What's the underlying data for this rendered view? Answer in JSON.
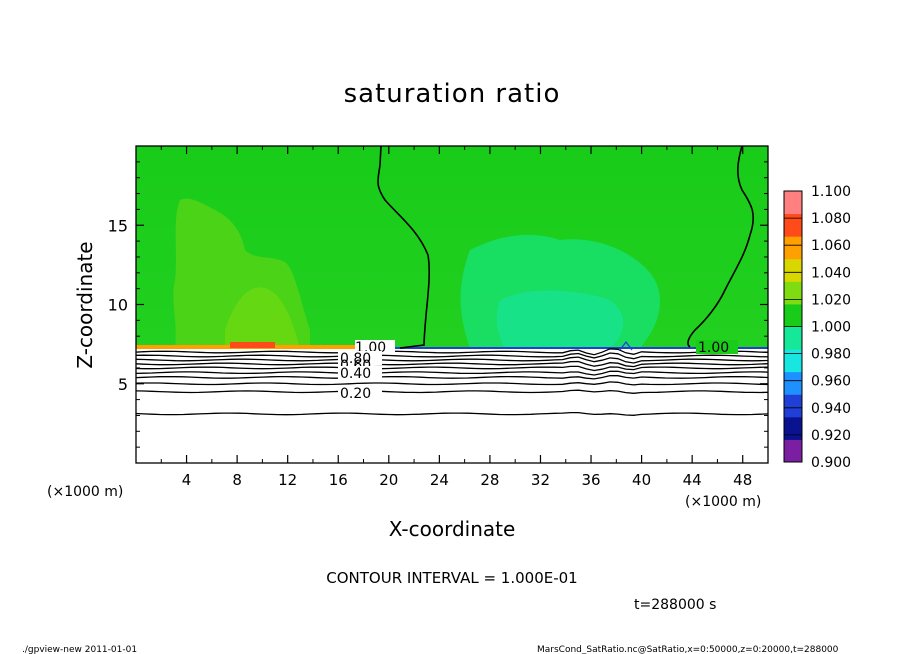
{
  "chart_data": {
    "type": "heatmap",
    "title": "saturation ratio",
    "xlabel": "X-coordinate",
    "ylabel": "Z-coordinate",
    "x_unit": "(×1000 m)",
    "z_unit": "(×1000 m)",
    "xlim": [
      0,
      50
    ],
    "ylim": [
      0,
      20
    ],
    "x_ticks": [
      "4",
      "8",
      "12",
      "16",
      "20",
      "24",
      "28",
      "32",
      "36",
      "40",
      "44",
      "48"
    ],
    "y_ticks": [
      "5",
      "10",
      "15"
    ],
    "colorbar": {
      "min": 0.9,
      "max": 1.1,
      "labels": [
        "1.100",
        "1.080",
        "1.060",
        "1.040",
        "1.020",
        "1.000",
        "0.980",
        "0.960",
        "0.940",
        "0.920",
        "0.900"
      ],
      "colors": [
        "#7a1fa2",
        "#0a1290",
        "#1f3fd6",
        "#1e90ff",
        "#18e6e0",
        "#16e89a",
        "#19cc19",
        "#7fdc10",
        "#d8d800",
        "#ffa000",
        "#ff4a1a",
        "#ff8080"
      ]
    },
    "contour_labels": [
      "1.00",
      "0.80",
      "0.60",
      "0.40",
      "0.20",
      "1.00"
    ],
    "contour_interval": "CONTOUR INTERVAL = 1.000E-01",
    "time": "t=288000 s"
  },
  "footer": {
    "left": "./gpview-new  2011-01-01",
    "right": "MarsCond_SatRatio.nc@SatRatio,x=0:50000,z=0:20000,t=288000"
  }
}
